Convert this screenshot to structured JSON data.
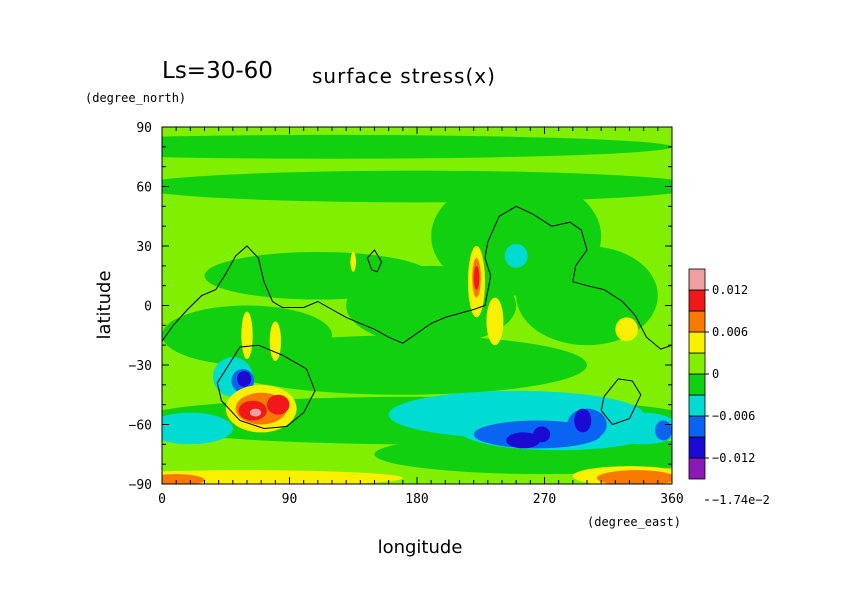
{
  "chart_data": {
    "type": "heatmap",
    "title_left": "Ls=30-60",
    "title_right": "surface stress(x)",
    "xlabel": "longitude",
    "ylabel": "latitude",
    "x_unit": "(degree_east)",
    "y_unit": "(degree_north)",
    "xlim": [
      0,
      360
    ],
    "ylim": [
      -90,
      90
    ],
    "x_ticks": [
      0,
      90,
      180,
      270,
      360
    ],
    "y_ticks": [
      -90,
      -60,
      -30,
      0,
      30,
      60,
      90
    ],
    "x_tick_labels": [
      "0",
      "90",
      "180",
      "270",
      "360"
    ],
    "y_tick_labels": [
      "−90",
      "−60",
      "−30",
      "0",
      "30",
      "60",
      "90"
    ],
    "colorbar": {
      "label_values": [
        "0.012",
        "0.006",
        "0",
        "−0.006",
        "−0.012",
        "−1.74e−2"
      ],
      "levels": [
        {
          "color": "#8a1ab8"
        },
        {
          "color": "#1a0ad2"
        },
        {
          "color": "#0a64f2"
        },
        {
          "color": "#00dcd2"
        },
        {
          "color": "#10d010"
        },
        {
          "color": "#80f000"
        },
        {
          "color": "#f8f000"
        },
        {
          "color": "#f87800"
        },
        {
          "color": "#f01818"
        },
        {
          "color": "#f0a0a0"
        }
      ]
    },
    "field": {
      "background": "#80f000",
      "patches": [
        {
          "color": "#10d010",
          "cx": 120,
          "cy": 80,
          "rx": 240,
          "ry": 6
        },
        {
          "color": "#10d010",
          "cx": 180,
          "cy": 60,
          "rx": 200,
          "ry": 8
        },
        {
          "color": "#10d010",
          "cx": 250,
          "cy": 35,
          "rx": 60,
          "ry": 30
        },
        {
          "color": "#10d010",
          "cx": 110,
          "cy": 15,
          "rx": 80,
          "ry": 12
        },
        {
          "color": "#10d010",
          "cx": 190,
          "cy": 0,
          "rx": 60,
          "ry": 20
        },
        {
          "color": "#10d010",
          "cx": 300,
          "cy": 5,
          "rx": 50,
          "ry": 25
        },
        {
          "color": "#10d010",
          "cx": 60,
          "cy": -15,
          "rx": 60,
          "ry": 15
        },
        {
          "color": "#10d010",
          "cx": 170,
          "cy": -30,
          "rx": 130,
          "ry": 15
        },
        {
          "color": "#10d010",
          "cx": 180,
          "cy": -58,
          "rx": 200,
          "ry": 12
        },
        {
          "color": "#10d010",
          "cx": 270,
          "cy": -75,
          "rx": 120,
          "ry": 10
        },
        {
          "color": "#00dcd2",
          "cx": 250,
          "cy": -55,
          "rx": 90,
          "ry": 12
        },
        {
          "color": "#00dcd2",
          "cx": 280,
          "cy": -63,
          "rx": 70,
          "ry": 10
        },
        {
          "color": "#00dcd2",
          "cx": 20,
          "cy": -62,
          "rx": 30,
          "ry": 8
        },
        {
          "color": "#00dcd2",
          "cx": 340,
          "cy": -62,
          "rx": 25,
          "ry": 8
        },
        {
          "color": "#00dcd2",
          "cx": 50,
          "cy": -36,
          "rx": 14,
          "ry": 10
        },
        {
          "color": "#00dcd2",
          "cx": 250,
          "cy": 25,
          "rx": 8,
          "ry": 6
        },
        {
          "color": "#0a64f2",
          "cx": 265,
          "cy": -65,
          "rx": 45,
          "ry": 7
        },
        {
          "color": "#0a64f2",
          "cx": 300,
          "cy": -60,
          "rx": 14,
          "ry": 8
        },
        {
          "color": "#0a64f2",
          "cx": 354,
          "cy": -63,
          "rx": 6,
          "ry": 5
        },
        {
          "color": "#0a64f2",
          "cx": 57,
          "cy": -38,
          "rx": 8,
          "ry": 6
        },
        {
          "color": "#1a0ad2",
          "cx": 255,
          "cy": -68,
          "rx": 12,
          "ry": 4
        },
        {
          "color": "#1a0ad2",
          "cx": 268,
          "cy": -65,
          "rx": 6,
          "ry": 4
        },
        {
          "color": "#1a0ad2",
          "cx": 297,
          "cy": -58,
          "rx": 6,
          "ry": 6
        },
        {
          "color": "#1a0ad2",
          "cx": 58,
          "cy": -37,
          "rx": 5,
          "ry": 4
        },
        {
          "color": "#f8f000",
          "cx": 70,
          "cy": -52,
          "rx": 25,
          "ry": 12
        },
        {
          "color": "#f8f000",
          "cx": 60,
          "cy": -15,
          "rx": 4,
          "ry": 12
        },
        {
          "color": "#f8f000",
          "cx": 80,
          "cy": -18,
          "rx": 4,
          "ry": 10
        },
        {
          "color": "#f8f000",
          "cx": 222,
          "cy": 12,
          "rx": 6,
          "ry": 18
        },
        {
          "color": "#f8f000",
          "cx": 235,
          "cy": -8,
          "rx": 6,
          "ry": 12
        },
        {
          "color": "#f8f000",
          "cx": 328,
          "cy": -12,
          "rx": 8,
          "ry": 6
        },
        {
          "color": "#f8f000",
          "cx": 135,
          "cy": 22,
          "rx": 2,
          "ry": 5
        },
        {
          "color": "#f8f000",
          "cx": 60,
          "cy": -87,
          "rx": 110,
          "ry": 4
        },
        {
          "color": "#f8f000",
          "cx": 330,
          "cy": -86,
          "rx": 40,
          "ry": 5
        },
        {
          "color": "#f87800",
          "cx": 70,
          "cy": -52,
          "rx": 18,
          "ry": 8
        },
        {
          "color": "#f87800",
          "cx": 10,
          "cy": -88,
          "rx": 20,
          "ry": 3
        },
        {
          "color": "#f87800",
          "cx": 335,
          "cy": -87,
          "rx": 28,
          "ry": 4
        },
        {
          "color": "#f87800",
          "cx": 222,
          "cy": 14,
          "rx": 3,
          "ry": 10
        },
        {
          "color": "#f01818",
          "cx": 64,
          "cy": -53,
          "rx": 10,
          "ry": 5
        },
        {
          "color": "#f01818",
          "cx": 82,
          "cy": -50,
          "rx": 8,
          "ry": 5
        },
        {
          "color": "#f01818",
          "cx": 222,
          "cy": 14,
          "rx": 2,
          "ry": 6
        },
        {
          "color": "#f0a0a0",
          "cx": 66,
          "cy": -54,
          "rx": 4,
          "ry": 2
        }
      ]
    },
    "outline": {
      "main": [
        [
          0,
          -18
        ],
        [
          8,
          -10
        ],
        [
          18,
          -2
        ],
        [
          28,
          5
        ],
        [
          38,
          8
        ],
        [
          45,
          16
        ],
        [
          52,
          25
        ],
        [
          60,
          30
        ],
        [
          68,
          24
        ],
        [
          72,
          12
        ],
        [
          78,
          2
        ],
        [
          85,
          -1
        ],
        [
          100,
          -1
        ],
        [
          110,
          2
        ],
        [
          120,
          -2
        ],
        [
          130,
          -6
        ],
        [
          140,
          -9
        ],
        [
          150,
          -12
        ],
        [
          160,
          -16
        ],
        [
          170,
          -19
        ],
        [
          180,
          -14
        ],
        [
          190,
          -9
        ],
        [
          200,
          -6
        ],
        [
          210,
          -4
        ],
        [
          220,
          -2
        ],
        [
          228,
          0
        ],
        [
          232,
          15
        ],
        [
          228,
          24
        ],
        [
          230,
          32
        ],
        [
          238,
          45
        ],
        [
          250,
          50
        ],
        [
          262,
          46
        ],
        [
          275,
          40
        ],
        [
          288,
          42
        ],
        [
          296,
          38
        ],
        [
          300,
          28
        ],
        [
          292,
          20
        ],
        [
          290,
          12
        ],
        [
          300,
          10
        ],
        [
          312,
          8
        ],
        [
          325,
          2
        ],
        [
          334,
          -5
        ],
        [
          342,
          -16
        ],
        [
          352,
          -22
        ],
        [
          360,
          -20
        ]
      ],
      "loops": [
        [
          [
            47,
            -30
          ],
          [
            55,
            -21
          ],
          [
            68,
            -20
          ],
          [
            85,
            -25
          ],
          [
            102,
            -32
          ],
          [
            108,
            -43
          ],
          [
            100,
            -54
          ],
          [
            88,
            -61
          ],
          [
            72,
            -62
          ],
          [
            55,
            -58
          ],
          [
            42,
            -48
          ],
          [
            39,
            -39
          ],
          [
            47,
            -30
          ]
        ],
        [
          [
            148,
            18
          ],
          [
            145,
            24
          ],
          [
            150,
            28
          ],
          [
            155,
            22
          ],
          [
            152,
            17
          ],
          [
            148,
            18
          ]
        ],
        [
          [
            312,
            -46
          ],
          [
            322,
            -37
          ],
          [
            332,
            -38
          ],
          [
            338,
            -45
          ],
          [
            330,
            -57
          ],
          [
            318,
            -60
          ],
          [
            310,
            -53
          ],
          [
            312,
            -46
          ]
        ]
      ]
    }
  }
}
